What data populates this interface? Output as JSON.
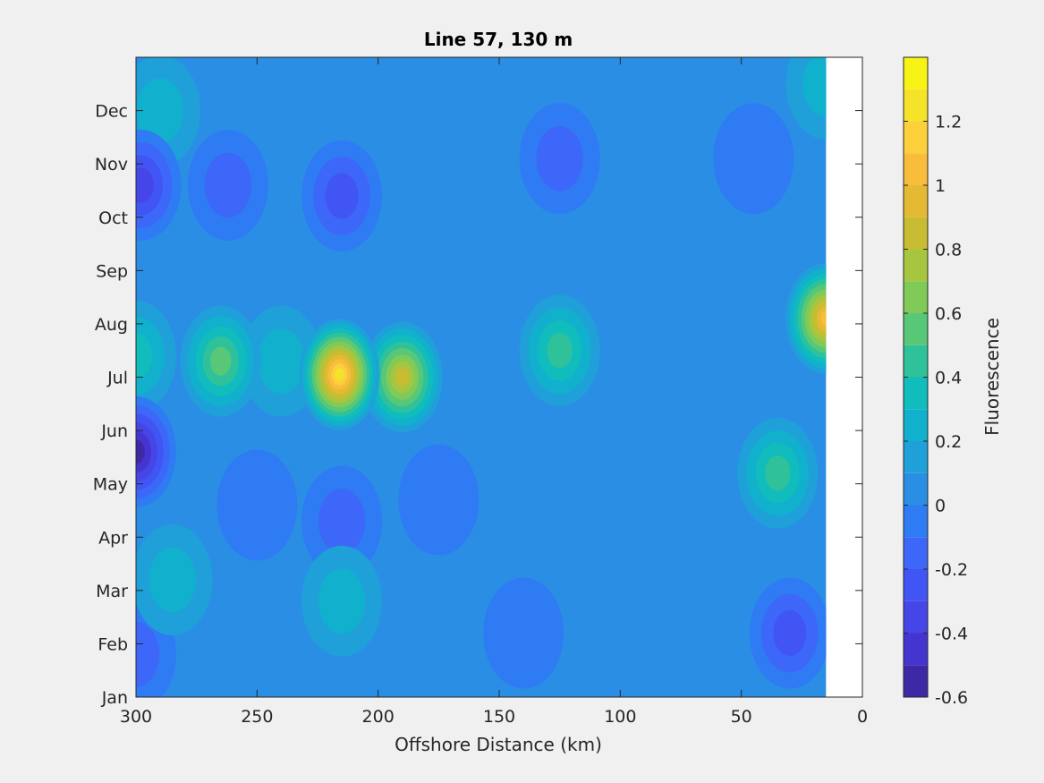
{
  "chart_data": {
    "type": "heatmap",
    "subtype": "filled-contour",
    "title": "Line 57, 130 m",
    "xlabel": "Offshore Distance (km)",
    "ylabel": "",
    "xlim": [
      300,
      0
    ],
    "x_reversed": true,
    "xticks": [
      300,
      250,
      200,
      150,
      100,
      50,
      0
    ],
    "ylim": [
      0,
      12
    ],
    "yticks": [
      0,
      1,
      2,
      3,
      4,
      5,
      6,
      7,
      8,
      9,
      10,
      11
    ],
    "yticklabels": [
      "Jan",
      "Feb",
      "Mar",
      "Apr",
      "May",
      "Jun",
      "Jul",
      "Aug",
      "Sep",
      "Oct",
      "Nov",
      "Dec"
    ],
    "data_extent_x": [
      15,
      300
    ],
    "colorbar": {
      "label": "Fluorescence",
      "min": -0.6,
      "max": 1.4,
      "ticks": [
        -0.6,
        -0.4,
        -0.2,
        0,
        0.2,
        0.4,
        0.6,
        0.8,
        1,
        1.2
      ],
      "ticklabels": [
        "-0.6",
        "-0.4",
        "-0.2",
        "0",
        "0.2",
        "0.4",
        "0.6",
        "0.8",
        "1",
        "1.2"
      ],
      "levels": [
        -0.6,
        -0.5,
        -0.4,
        -0.3,
        -0.2,
        -0.1,
        0,
        0.1,
        0.2,
        0.3,
        0.4,
        0.5,
        0.6,
        0.7,
        0.8,
        0.9,
        1.0,
        1.1,
        1.2,
        1.3,
        1.4
      ],
      "colormap": "parula",
      "colors": [
        "#3d28a6",
        "#4535d0",
        "#4545e8",
        "#4055f4",
        "#3d67f8",
        "#2f7bf3",
        "#2a8ee5",
        "#1fa0d9",
        "#11b0cd",
        "#10bcbc",
        "#2fc29a",
        "#58c878",
        "#80cb58",
        "#a8c53f",
        "#c8bd32",
        "#e4b934",
        "#f8be3b",
        "#fbd03b",
        "#f5e32a",
        "#f8f316"
      ],
      "background": "#2a8ee5"
    },
    "anomalies": [
      {
        "x": 216,
        "y": 6.05,
        "value": 1.3
      },
      {
        "x": 190,
        "y": 6.0,
        "value": 0.85
      },
      {
        "x": 265,
        "y": 6.3,
        "value": 0.55
      },
      {
        "x": 300,
        "y": 6.4,
        "value": 0.35
      },
      {
        "x": 240,
        "y": 6.3,
        "value": 0.3
      },
      {
        "x": 125,
        "y": 6.5,
        "value": 0.45
      },
      {
        "x": 15,
        "y": 7.1,
        "value": 1.1
      },
      {
        "x": 35,
        "y": 4.2,
        "value": 0.5
      },
      {
        "x": 300,
        "y": 4.6,
        "value": -0.65
      },
      {
        "x": 298,
        "y": 9.6,
        "value": -0.35
      },
      {
        "x": 262,
        "y": 9.6,
        "value": -0.18
      },
      {
        "x": 215,
        "y": 9.4,
        "value": -0.28
      },
      {
        "x": 125,
        "y": 10.1,
        "value": -0.12
      },
      {
        "x": 45,
        "y": 10.1,
        "value": -0.1
      },
      {
        "x": 30,
        "y": 1.2,
        "value": -0.22
      },
      {
        "x": 215,
        "y": 3.3,
        "value": -0.18
      },
      {
        "x": 250,
        "y": 3.6,
        "value": -0.1
      },
      {
        "x": 175,
        "y": 3.7,
        "value": -0.08
      },
      {
        "x": 300,
        "y": 0.8,
        "value": -0.15
      },
      {
        "x": 140,
        "y": 1.2,
        "value": -0.1
      },
      {
        "x": 285,
        "y": 2.2,
        "value": 0.3
      },
      {
        "x": 215,
        "y": 1.8,
        "value": 0.25
      },
      {
        "x": 290,
        "y": 11.0,
        "value": 0.25
      },
      {
        "x": 15,
        "y": 11.5,
        "value": 0.3
      }
    ]
  }
}
